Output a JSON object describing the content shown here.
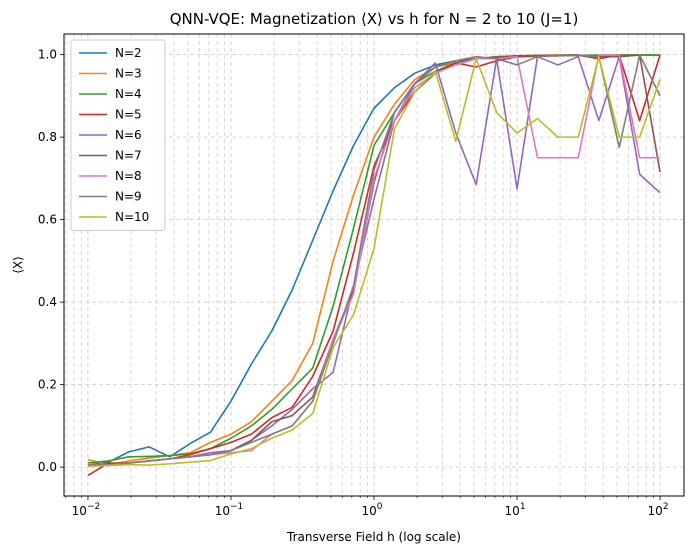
{
  "chart_data": {
    "type": "line",
    "title": "QNN-VQE: Magnetization ⟨X⟩ vs h for N = 2 to 10 (J=1)",
    "xlabel": "Transverse Field h (log scale)",
    "ylabel": "⟨X⟩",
    "xscale": "log",
    "xlim": [
      0.0068,
      147
    ],
    "ylim": [
      -0.07,
      1.05
    ],
    "xticks": [
      {
        "value": 0.01,
        "base": "10",
        "exp": "−2"
      },
      {
        "value": 0.1,
        "base": "10",
        "exp": "−1"
      },
      {
        "value": 1,
        "base": "10",
        "exp": "0"
      },
      {
        "value": 10,
        "base": "10",
        "exp": "1"
      },
      {
        "value": 100,
        "base": "10",
        "exp": "2"
      }
    ],
    "yticks": [
      "0.0",
      "0.2",
      "0.4",
      "0.6",
      "0.8",
      "1.0"
    ],
    "grid": true,
    "legend_position": "top-left",
    "x": [
      0.01,
      0.0139,
      0.0193,
      0.0268,
      0.0373,
      0.0518,
      0.072,
      0.1,
      0.139,
      0.193,
      0.268,
      0.373,
      0.518,
      0.72,
      1.0,
      1.39,
      1.93,
      2.68,
      3.73,
      5.18,
      7.2,
      10.0,
      13.9,
      19.3,
      26.8,
      37.3,
      51.8,
      72.0,
      100
    ],
    "series": [
      {
        "name": "N=2",
        "color": "#1f77b4",
        "values": [
          0.005,
          0.012,
          0.037,
          0.049,
          0.025,
          0.057,
          0.085,
          0.16,
          0.25,
          0.33,
          0.43,
          0.55,
          0.67,
          0.78,
          0.87,
          0.92,
          0.955,
          0.975,
          0.985,
          0.99,
          0.993,
          0.995,
          0.996,
          0.997,
          0.998,
          0.998,
          0.999,
          0.999,
          0.999
        ]
      },
      {
        "name": "N=3",
        "color": "#ff7f0e",
        "values": [
          0.018,
          0.005,
          0.015,
          0.022,
          0.028,
          0.035,
          0.06,
          0.08,
          0.11,
          0.16,
          0.21,
          0.3,
          0.5,
          0.66,
          0.8,
          0.88,
          0.94,
          0.97,
          0.98,
          0.99,
          0.993,
          0.995,
          0.996,
          0.997,
          0.998,
          0.998,
          0.999,
          0.999,
          0.999
        ]
      },
      {
        "name": "N=4",
        "color": "#2ca02c",
        "values": [
          0.01,
          0.015,
          0.025,
          0.026,
          0.028,
          0.032,
          0.045,
          0.07,
          0.1,
          0.14,
          0.19,
          0.24,
          0.39,
          0.58,
          0.78,
          0.86,
          0.93,
          0.96,
          0.98,
          0.99,
          0.993,
          0.995,
          0.997,
          0.998,
          0.998,
          0.999,
          0.999,
          0.999,
          0.999
        ]
      },
      {
        "name": "N=5",
        "color": "#d62728",
        "values": [
          -0.02,
          0.01,
          0.01,
          0.015,
          0.02,
          0.03,
          0.045,
          0.06,
          0.08,
          0.12,
          0.145,
          0.22,
          0.33,
          0.52,
          0.73,
          0.84,
          0.91,
          0.955,
          0.98,
          0.97,
          0.985,
          0.995,
          0.998,
          0.999,
          0.999,
          0.99,
          0.999,
          0.84,
          0.999
        ]
      },
      {
        "name": "N=6",
        "color": "#9467bd",
        "values": [
          0.005,
          0.005,
          0.01,
          0.015,
          0.02,
          0.025,
          0.035,
          0.04,
          0.065,
          0.1,
          0.14,
          0.19,
          0.23,
          0.44,
          0.65,
          0.84,
          0.93,
          0.98,
          0.81,
          0.685,
          0.99,
          0.675,
          0.995,
          0.975,
          0.995,
          0.84,
          0.995,
          0.71,
          0.665
        ]
      },
      {
        "name": "N=7",
        "color": "#8c564b",
        "values": [
          0.005,
          0.007,
          0.01,
          0.015,
          0.02,
          0.025,
          0.03,
          0.04,
          0.065,
          0.11,
          0.125,
          0.17,
          0.31,
          0.43,
          0.69,
          0.86,
          0.93,
          0.97,
          0.985,
          0.99,
          0.995,
          0.997,
          0.998,
          0.998,
          0.999,
          0.995,
          0.995,
          0.999,
          0.715
        ]
      },
      {
        "name": "N=8",
        "color": "#e377c2",
        "values": [
          0.004,
          0.005,
          0.01,
          0.015,
          0.02,
          0.025,
          0.03,
          0.035,
          0.04,
          0.08,
          0.1,
          0.16,
          0.31,
          0.42,
          0.7,
          0.84,
          0.92,
          0.955,
          0.975,
          0.99,
          0.99,
          0.995,
          0.75,
          0.75,
          0.75,
          0.999,
          0.999,
          0.75,
          0.75
        ]
      },
      {
        "name": "N=9",
        "color": "#7f7f7f",
        "values": [
          0.003,
          0.005,
          0.01,
          0.015,
          0.02,
          0.025,
          0.03,
          0.04,
          0.06,
          0.08,
          0.1,
          0.16,
          0.3,
          0.44,
          0.72,
          0.86,
          0.93,
          0.97,
          0.985,
          0.995,
          0.99,
          0.975,
          0.995,
          0.999,
          0.999,
          0.995,
          0.775,
          0.999,
          0.9
        ]
      },
      {
        "name": "N=10",
        "color": "#bcbd22",
        "values": [
          0.002,
          0.004,
          0.006,
          0.005,
          0.008,
          0.012,
          0.016,
          0.032,
          0.045,
          0.07,
          0.09,
          0.13,
          0.29,
          0.37,
          0.53,
          0.82,
          0.91,
          0.96,
          0.79,
          0.99,
          0.86,
          0.81,
          0.845,
          0.8,
          0.8,
          0.995,
          0.8,
          0.8,
          0.94
        ]
      }
    ]
  }
}
